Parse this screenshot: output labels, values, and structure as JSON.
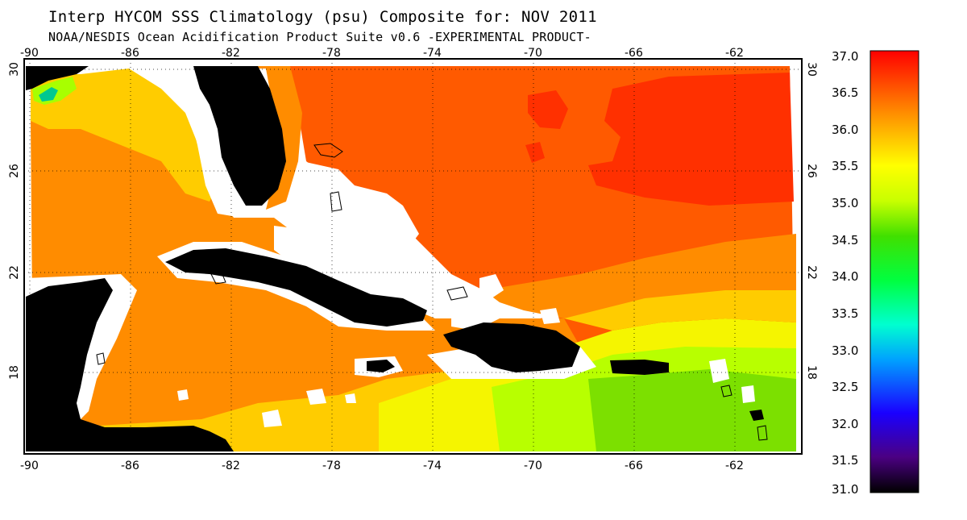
{
  "title": "Interp HYCOM SSS Climatology (psu) Composite for: NOV 2011",
  "subtitle": "NOAA/NESDIS Ocean Acidification Product Suite  v0.6 -EXPERIMENTAL PRODUCT-",
  "map": {
    "lon_range": [
      -91,
      -60
    ],
    "lat_range": [
      14.8,
      30.3
    ],
    "lon_ticks": [
      "-90",
      "-86",
      "-82",
      "-78",
      "-74",
      "-70",
      "-66",
      "-62"
    ],
    "lat_ticks": [
      "30",
      "26",
      "22",
      "18"
    ],
    "land_color": "#000000",
    "missing_color": "#ffffff",
    "grid": "dotted"
  },
  "colorbar": {
    "min": 31.0,
    "max": 37.0,
    "labels": [
      "37.0",
      "36.5",
      "36.0",
      "35.5",
      "35.0",
      "34.5",
      "34.0",
      "33.5",
      "33.0",
      "32.5",
      "32.0",
      "31.5",
      "31.0"
    ],
    "stops": [
      "#000000",
      "#6a00a8",
      "#0000ff",
      "#00bfff",
      "#00ff7f",
      "#00e000",
      "#bfff00",
      "#ffff00",
      "#ffa500",
      "#ff4500",
      "#ff0000"
    ]
  },
  "regions": [
    {
      "name": "gulf-of-mexico",
      "value": 36.0,
      "color": "#ff8c00"
    },
    {
      "name": "gulf-north-shelf",
      "value": 35.7,
      "color": "#ffcc00"
    },
    {
      "name": "mississippi-plume",
      "value": 33.0,
      "color": "#00c080"
    },
    {
      "name": "western-atlantic",
      "value": 36.4,
      "color": "#ff5500"
    },
    {
      "name": "sargasso-maximum",
      "value": 36.8,
      "color": "#ff2a00"
    },
    {
      "name": "central-caribbean",
      "value": 36.0,
      "color": "#ff8c00"
    },
    {
      "name": "caribbean-south",
      "value": 35.7,
      "color": "#ffcc00"
    },
    {
      "name": "eastern-caribbean",
      "value": 35.3,
      "color": "#ccff00"
    },
    {
      "name": "lesser-antilles",
      "value": 34.9,
      "color": "#88e000"
    }
  ]
}
